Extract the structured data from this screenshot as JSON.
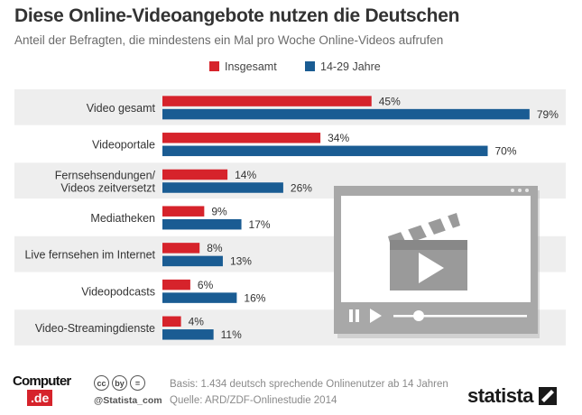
{
  "header": {
    "title": "Diese Online-Videoangebote nutzen die Deutschen",
    "subtitle": "Anteil der Befragten, die mindestens ein Mal pro Woche Online-Videos aufrufen"
  },
  "chart_data": {
    "type": "bar",
    "orientation": "horizontal",
    "categories": [
      [
        "Video gesamt"
      ],
      [
        "Videoportale"
      ],
      [
        "Fernsehsendungen/",
        "Videos zeitversetzt"
      ],
      [
        "Mediatheken"
      ],
      [
        "Live fernsehen im Internet"
      ],
      [
        "Videopodcasts"
      ],
      [
        "Video-Streamingdienste"
      ]
    ],
    "series": [
      {
        "name": "Insgesamt",
        "color": "#d6232b",
        "values": [
          45,
          34,
          14,
          9,
          8,
          6,
          4
        ]
      },
      {
        "name": "14-29 Jahre",
        "color": "#1a5c93",
        "values": [
          79,
          70,
          26,
          17,
          13,
          16,
          11
        ]
      }
    ],
    "value_suffix": "%",
    "xlim": [
      0,
      100
    ],
    "grid": false,
    "legend_position": "top-center",
    "row_stripes": true
  },
  "footer": {
    "basis": "Basis: 1.434  deutsch sprechende Onlinenutzer ab 14 Jahren",
    "source": "Quelle: ARD/ZDF-Onlinestudie 2014",
    "handle": "@Statista_com",
    "cc_icons": [
      "cc",
      "by",
      "="
    ],
    "logo_line1": "Computer",
    "logo_line2": ".de",
    "brand": "statista"
  }
}
